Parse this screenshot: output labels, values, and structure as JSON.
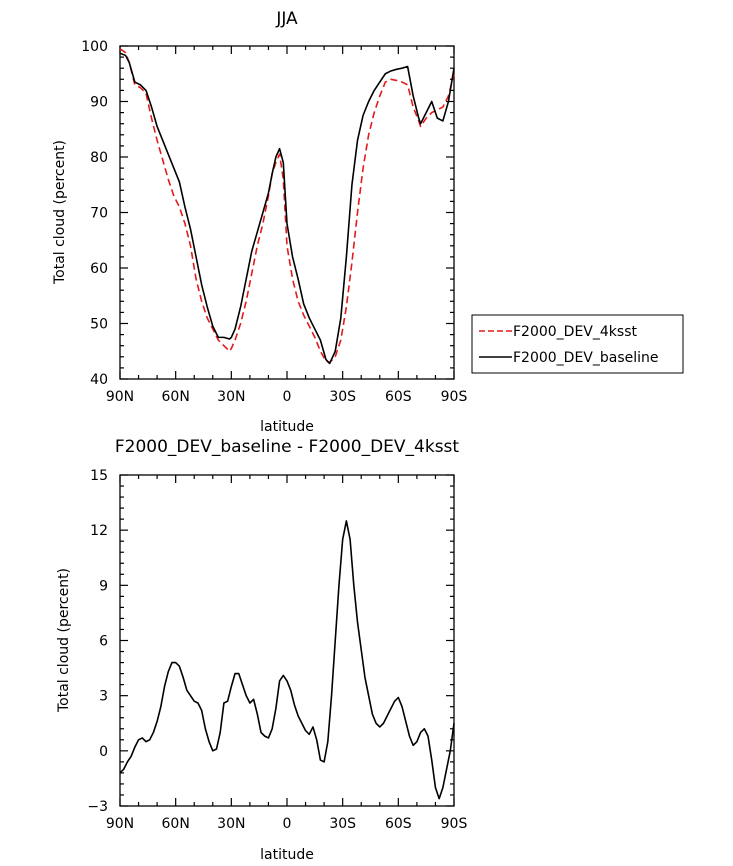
{
  "chart_data": [
    {
      "type": "line",
      "title": "JJA",
      "xlabel": "latitude",
      "ylabel": "Total cloud (percent)",
      "xlim": [
        90,
        -90
      ],
      "ylim": [
        40,
        100
      ],
      "xticks": [
        90,
        60,
        30,
        0,
        -30,
        -60,
        -90
      ],
      "xtick_labels": [
        "90N",
        "60N",
        "30N",
        "0",
        "30S",
        "60S",
        "90S"
      ],
      "yticks": [
        40,
        50,
        60,
        70,
        80,
        90,
        100
      ],
      "ytick_labels": [
        "40",
        "50",
        "60",
        "70",
        "80",
        "90",
        "100"
      ],
      "legend_position": "right",
      "series": [
        {
          "name": "F2000_DEV_4ksst",
          "color": "#e31a1c",
          "dash": "dashed",
          "x": [
            90,
            87,
            85,
            82,
            79,
            76,
            73,
            70,
            67,
            64,
            61,
            58,
            55,
            52,
            49,
            46,
            43,
            40,
            37,
            34,
            31,
            30,
            28,
            25,
            22,
            19,
            16,
            13,
            10,
            8,
            6,
            4,
            2,
            0,
            -3,
            -6,
            -9,
            -12,
            -15,
            -18,
            -21,
            -23,
            -26,
            -29,
            -32,
            -35,
            -38,
            -41,
            -44,
            -47,
            -50,
            -53,
            -56,
            -59,
            -62,
            -65,
            -68,
            -71,
            -72,
            -75,
            -78,
            -81,
            -84,
            -87,
            -90
          ],
          "y": [
            99.5,
            98.8,
            97,
            93,
            92.5,
            91.5,
            87,
            83,
            79.5,
            76,
            73,
            71,
            68,
            64,
            58,
            54,
            51,
            49,
            47,
            46,
            45,
            45.5,
            47,
            50,
            54,
            59,
            64,
            68,
            73,
            77,
            79,
            80.5,
            76,
            64,
            58,
            54,
            51.5,
            49.5,
            47.5,
            45,
            43.2,
            43,
            44,
            47,
            53,
            61,
            70,
            78,
            84,
            88,
            91,
            93.5,
            94,
            93.8,
            93.5,
            93,
            89,
            86.5,
            85.5,
            87,
            88,
            88.5,
            89,
            91,
            95
          ]
        },
        {
          "name": "F2000_DEV_baseline",
          "color": "#000000",
          "dash": "solid",
          "x": [
            90,
            87,
            85,
            82,
            79,
            76,
            73,
            70,
            67,
            64,
            61,
            58,
            55,
            52,
            49,
            46,
            43,
            40,
            37,
            34,
            31,
            30,
            28,
            25,
            22,
            19,
            16,
            13,
            10,
            8,
            6,
            4,
            2,
            0,
            -3,
            -6,
            -9,
            -12,
            -15,
            -18,
            -21,
            -23,
            -26,
            -29,
            -32,
            -35,
            -38,
            -41,
            -44,
            -47,
            -50,
            -53,
            -56,
            -59,
            -62,
            -65,
            -68,
            -71,
            -72,
            -75,
            -78,
            -81,
            -84,
            -87,
            -90
          ],
          "y": [
            98.7,
            98.3,
            97,
            93.5,
            93,
            92,
            89,
            85.5,
            83,
            80.5,
            78,
            75.5,
            71,
            67,
            62,
            57,
            53,
            49.5,
            47.5,
            47.5,
            47.2,
            47.5,
            49,
            53,
            58,
            63,
            66.5,
            70,
            73.5,
            77,
            80,
            81.5,
            79,
            68,
            62,
            58,
            53.5,
            51,
            49,
            47,
            43.5,
            42.8,
            45,
            51,
            62,
            75,
            83,
            87.5,
            90,
            92,
            93.5,
            95,
            95.5,
            95.8,
            96,
            96.3,
            91,
            87,
            86,
            88,
            90,
            87,
            86.5,
            90,
            96
          ]
        }
      ]
    },
    {
      "type": "line",
      "title": "F2000_DEV_baseline - F2000_DEV_4ksst",
      "xlabel": "latitude",
      "ylabel": "Total cloud (percent)",
      "xlim": [
        90,
        -90
      ],
      "ylim": [
        -3,
        15
      ],
      "xticks": [
        90,
        60,
        30,
        0,
        -30,
        -60,
        -90
      ],
      "xtick_labels": [
        "90N",
        "60N",
        "30N",
        "0",
        "30S",
        "60S",
        "90S"
      ],
      "yticks": [
        -3,
        0,
        3,
        6,
        9,
        12,
        15
      ],
      "ytick_labels": [
        "−3",
        "0",
        "3",
        "6",
        "9",
        "12",
        "15"
      ],
      "series": [
        {
          "color": "#000000",
          "dash": "solid",
          "x": [
            90,
            88,
            86,
            84,
            82,
            80,
            78,
            76,
            74,
            72,
            70,
            68,
            66,
            64,
            62,
            60,
            58,
            56,
            54,
            52,
            50,
            48,
            46,
            44,
            42,
            40,
            38,
            36,
            34,
            32,
            30,
            28,
            26,
            24,
            22,
            20,
            18,
            16,
            14,
            12,
            10,
            8,
            6,
            4,
            2,
            0,
            -2,
            -4,
            -6,
            -8,
            -10,
            -12,
            -14,
            -16,
            -18,
            -20,
            -22,
            -24,
            -26,
            -28,
            -30,
            -32,
            -34,
            -36,
            -38,
            -40,
            -42,
            -44,
            -46,
            -48,
            -50,
            -52,
            -54,
            -56,
            -58,
            -60,
            -62,
            -64,
            -66,
            -68,
            -70,
            -72,
            -74,
            -76,
            -78,
            -80,
            -82,
            -84,
            -86,
            -88,
            -90
          ],
          "y": [
            -1.2,
            -1.0,
            -0.6,
            -0.3,
            0.2,
            0.6,
            0.7,
            0.5,
            0.6,
            1.0,
            1.6,
            2.4,
            3.5,
            4.3,
            4.8,
            4.8,
            4.6,
            4.0,
            3.3,
            3.0,
            2.7,
            2.6,
            2.2,
            1.2,
            0.5,
            0.0,
            0.1,
            1.0,
            2.6,
            2.7,
            3.5,
            4.2,
            4.2,
            3.6,
            3.0,
            2.6,
            2.8,
            2.0,
            1.0,
            0.8,
            0.7,
            1.2,
            2.3,
            3.8,
            4.1,
            3.8,
            3.3,
            2.5,
            1.9,
            1.5,
            1.1,
            0.9,
            1.3,
            0.6,
            -0.5,
            -0.6,
            0.5,
            3.0,
            6.0,
            9.0,
            11.5,
            12.5,
            11.5,
            9.0,
            7.0,
            5.5,
            4.0,
            3.0,
            2.0,
            1.5,
            1.3,
            1.5,
            1.9,
            2.3,
            2.7,
            2.9,
            2.4,
            1.6,
            0.8,
            0.3,
            0.5,
            1.0,
            1.2,
            0.8,
            -0.5,
            -2.0,
            -2.6,
            -2.0,
            -1.0,
            0.0,
            1.5
          ]
        }
      ]
    }
  ]
}
